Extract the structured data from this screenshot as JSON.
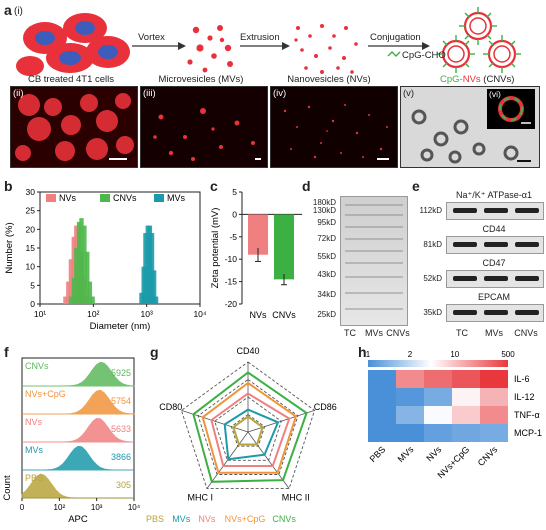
{
  "panel_a": {
    "label": "a",
    "sub_i": "(i)",
    "step1_label": "Vortex",
    "step2_label": "Extrusion",
    "step3_label": "Conjugation",
    "reagent_label": "CpG-CHO",
    "product_cpg": "CpG-",
    "product_nvs": "NVs",
    "product_cnvs": " (CNVs)",
    "caption_cells": "CB treated 4T1 cells",
    "caption_mvs": "Microvesicles (MVs)",
    "caption_nvs": "Nanovesicles (NVs)",
    "sub_ii": "(ii)",
    "sub_iii": "(iii)",
    "sub_iv": "(iv)",
    "sub_v": "(v)",
    "sub_vi": "(vi)"
  },
  "panel_b": {
    "label": "b",
    "chart_data": {
      "type": "area",
      "xlabel": "Diameter (nm)",
      "ylabel": "Number (%)",
      "x_scale": "log",
      "xlim": [
        10,
        10000
      ],
      "ylim": [
        0,
        30
      ],
      "xticks": [
        "10¹",
        "10²",
        "10³",
        "10⁴"
      ],
      "yticks": [
        0,
        5,
        10,
        15,
        20,
        25,
        30
      ],
      "legend": [
        "NVs",
        "CNVs",
        "MVs"
      ],
      "colors": {
        "NVs": "#f08080",
        "CNVs": "#4cb84a",
        "MVs": "#1b9aaa"
      },
      "series": [
        {
          "name": "NVs",
          "x": [
            30,
            34,
            38,
            43,
            48,
            54,
            60,
            68,
            77
          ],
          "values": [
            2,
            6,
            12,
            18,
            21,
            20,
            14,
            7,
            2
          ]
        },
        {
          "name": "CNVs",
          "x": [
            38,
            43,
            48,
            54,
            60,
            68,
            77,
            86,
            97
          ],
          "values": [
            2,
            7,
            15,
            22,
            23,
            21,
            14,
            6,
            2
          ]
        },
        {
          "name": "MVs",
          "x": [
            800,
            880,
            950,
            1050,
            1150,
            1260,
            1380,
            1500
          ],
          "values": [
            3,
            10,
            19,
            21,
            21,
            19,
            9,
            2
          ]
        }
      ]
    }
  },
  "panel_c": {
    "label": "c",
    "chart_data": {
      "type": "bar",
      "ylabel": "Zeta potential (mV)",
      "categories": [
        "NVs",
        "CNVs"
      ],
      "values": [
        -9,
        -14.5
      ],
      "errors": [
        1.5,
        1.2
      ],
      "ylim": [
        -20,
        5
      ],
      "yticks": [
        5,
        0,
        -5,
        -10,
        -15,
        -20
      ],
      "colors": [
        "#f08080",
        "#3cb043"
      ]
    }
  },
  "panel_d": {
    "label": "d",
    "markers": [
      "180kD",
      "130kD",
      "95kD",
      "72kD",
      "55kD",
      "43kD",
      "34kD",
      "25kD"
    ],
    "lanes": [
      "TC",
      "MVs",
      "CNVs"
    ]
  },
  "panel_e": {
    "label": "e",
    "proteins": [
      {
        "name": "Na⁺/K⁺ ATPase-α1",
        "size": "112kD"
      },
      {
        "name": "CD44",
        "size": "81kD"
      },
      {
        "name": "CD47",
        "size": "52kD"
      },
      {
        "name": "EPCAM",
        "size": "35kD"
      }
    ],
    "lanes": [
      "TC",
      "MVs",
      "CNVs"
    ]
  },
  "panel_f": {
    "label": "f",
    "xlabel": "APC",
    "ylabel": "Count",
    "x_ticks": [
      "0",
      "10²",
      "10³",
      "10⁴"
    ],
    "chart_data": {
      "type": "area",
      "series": [
        {
          "name": "CNVs",
          "value": 5925,
          "color": "#5cb85c"
        },
        {
          "name": "NVs+CpG",
          "value": 5754,
          "color": "#f0943c"
        },
        {
          "name": "NVs",
          "value": 5633,
          "color": "#f08080"
        },
        {
          "name": "MVs",
          "value": 3866,
          "color": "#1b9aaa"
        },
        {
          "name": "PBS",
          "value": 305,
          "color": "#b8a43a"
        }
      ]
    }
  },
  "panel_g": {
    "label": "g",
    "chart_data": {
      "type": "radar",
      "axes": [
        "CD40",
        "CD86",
        "MHC II",
        "MHC I",
        "CD80"
      ],
      "legend": [
        "PBS",
        "MVs",
        "NVs",
        "NVs+CpG",
        "CNVs"
      ],
      "colors": {
        "PBS": "#b8a43a",
        "MVs": "#1b9aaa",
        "NVs": "#f08080",
        "NVs+CpG": "#f0943c",
        "CNVs": "#3cb043"
      },
      "series": [
        {
          "name": "PBS",
          "values": [
            0.22,
            0.22,
            0.22,
            0.22,
            0.22
          ]
        },
        {
          "name": "MVs",
          "values": [
            0.32,
            0.45,
            0.4,
            0.48,
            0.35
          ]
        },
        {
          "name": "NVs",
          "values": [
            0.55,
            0.62,
            0.6,
            0.6,
            0.55
          ]
        },
        {
          "name": "NVs+CpG",
          "values": [
            0.7,
            0.72,
            0.72,
            0.72,
            0.68
          ]
        },
        {
          "name": "CNVs",
          "values": [
            0.85,
            0.88,
            0.85,
            0.88,
            0.82
          ]
        }
      ]
    }
  },
  "panel_h": {
    "label": "h",
    "chart_data": {
      "type": "heatmap",
      "colorbar_ticks": [
        "1",
        "2",
        "10",
        "500"
      ],
      "columns": [
        "PBS",
        "MVs",
        "NVs",
        "NVs+CpG",
        "CNVs"
      ],
      "rows": [
        "IL-6",
        "IL-12",
        "TNF-α",
        "MCP-1"
      ],
      "values": [
        [
          1,
          120,
          200,
          300,
          500
        ],
        [
          1,
          1.2,
          2,
          20,
          60
        ],
        [
          1,
          2.5,
          15,
          40,
          120
        ],
        [
          1,
          1,
          1.5,
          1.8,
          2
        ]
      ],
      "colors": {
        "low": "#4a90d9",
        "mid": "#ffffff",
        "high": "#e8383d"
      }
    }
  }
}
